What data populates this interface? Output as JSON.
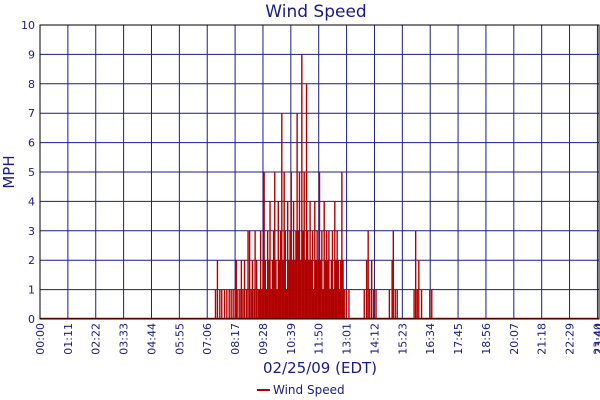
{
  "chart_data": {
    "type": "bar",
    "title": "Wind Speed",
    "xlabel": "02/25/09 (EDT)",
    "ylabel": "MPH",
    "ylim": [
      0,
      10
    ],
    "yticks": [
      "0",
      "1",
      "2",
      "3",
      "4",
      "5",
      "6",
      "7",
      "8",
      "9",
      "10"
    ],
    "xticks": [
      "00:00",
      "01:11",
      "02:22",
      "03:33",
      "04:44",
      "05:55",
      "07:06",
      "08:17",
      "09:28",
      "10:39",
      "11:50",
      "13:01",
      "14:12",
      "15:23",
      "16:34",
      "17:45",
      "18:56",
      "20:07",
      "21:18",
      "22:29",
      "23:40",
      "23:44"
    ],
    "x_range_minutes": [
      0,
      1424
    ],
    "grid": true,
    "legend": "bottom",
    "series": [
      {
        "name": "Wind Speed",
        "color": "#b00000",
        "samples": [
          [
            447,
            1
          ],
          [
            452,
            2
          ],
          [
            458,
            1
          ],
          [
            463,
            1
          ],
          [
            470,
            1
          ],
          [
            476,
            1
          ],
          [
            482,
            1
          ],
          [
            487,
            1
          ],
          [
            492,
            1
          ],
          [
            497,
            1
          ],
          [
            500,
            2
          ],
          [
            504,
            1
          ],
          [
            509,
            1
          ],
          [
            513,
            2
          ],
          [
            517,
            1
          ],
          [
            521,
            2
          ],
          [
            526,
            1
          ],
          [
            530,
            3
          ],
          [
            534,
            3
          ],
          [
            538,
            1
          ],
          [
            541,
            2
          ],
          [
            545,
            1
          ],
          [
            548,
            3
          ],
          [
            552,
            2
          ],
          [
            556,
            1
          ],
          [
            559,
            1
          ],
          [
            562,
            3
          ],
          [
            565,
            1
          ],
          [
            568,
            2
          ],
          [
            571,
            5
          ],
          [
            574,
            2
          ],
          [
            577,
            1
          ],
          [
            580,
            3
          ],
          [
            583,
            2
          ],
          [
            586,
            4
          ],
          [
            589,
            1
          ],
          [
            592,
            2
          ],
          [
            595,
            3
          ],
          [
            598,
            5
          ],
          [
            601,
            2
          ],
          [
            604,
            1
          ],
          [
            607,
            4
          ],
          [
            610,
            2
          ],
          [
            613,
            3
          ],
          [
            616,
            7
          ],
          [
            619,
            2
          ],
          [
            622,
            5
          ],
          [
            625,
            3
          ],
          [
            628,
            1
          ],
          [
            631,
            4
          ],
          [
            634,
            2
          ],
          [
            637,
            3
          ],
          [
            640,
            5
          ],
          [
            643,
            2
          ],
          [
            646,
            4
          ],
          [
            649,
            2
          ],
          [
            652,
            3
          ],
          [
            655,
            7
          ],
          [
            658,
            3
          ],
          [
            661,
            5
          ],
          [
            664,
            2
          ],
          [
            667,
            9
          ],
          [
            670,
            3
          ],
          [
            673,
            5
          ],
          [
            676,
            2
          ],
          [
            679,
            8
          ],
          [
            682,
            3
          ],
          [
            685,
            2
          ],
          [
            688,
            4
          ],
          [
            691,
            2
          ],
          [
            694,
            3
          ],
          [
            697,
            1
          ],
          [
            700,
            4
          ],
          [
            703,
            2
          ],
          [
            706,
            3
          ],
          [
            709,
            2
          ],
          [
            712,
            5
          ],
          [
            715,
            2
          ],
          [
            718,
            3
          ],
          [
            721,
            1
          ],
          [
            724,
            4
          ],
          [
            727,
            2
          ],
          [
            730,
            3
          ],
          [
            733,
            2
          ],
          [
            736,
            3
          ],
          [
            739,
            1
          ],
          [
            742,
            2
          ],
          [
            745,
            3
          ],
          [
            748,
            1
          ],
          [
            751,
            4
          ],
          [
            754,
            2
          ],
          [
            757,
            3
          ],
          [
            760,
            2
          ],
          [
            763,
            1
          ],
          [
            766,
            2
          ],
          [
            769,
            5
          ],
          [
            772,
            2
          ],
          [
            775,
            1
          ],
          [
            780,
            1
          ],
          [
            787,
            1
          ],
          [
            826,
            1
          ],
          [
            832,
            2
          ],
          [
            836,
            3
          ],
          [
            840,
            1
          ],
          [
            845,
            2
          ],
          [
            850,
            1
          ],
          [
            856,
            1
          ],
          [
            890,
            1
          ],
          [
            897,
            2
          ],
          [
            900,
            3
          ],
          [
            905,
            1
          ],
          [
            910,
            1
          ],
          [
            953,
            1
          ],
          [
            957,
            3
          ],
          [
            961,
            1
          ],
          [
            965,
            2
          ],
          [
            972,
            1
          ],
          [
            993,
            1
          ],
          [
            998,
            1
          ]
        ]
      }
    ]
  }
}
